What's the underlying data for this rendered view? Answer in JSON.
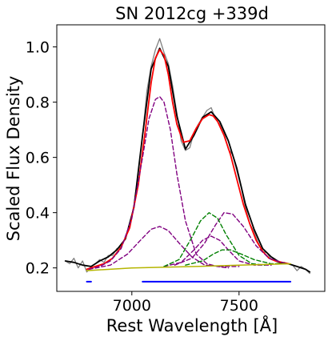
{
  "chart_data": {
    "type": "line",
    "title": "SN 2012cg  +339d",
    "xlabel": "Rest Wavelength [Å]",
    "ylabel": "Scaled Flux Density",
    "xlim": [
      6650,
      7900
    ],
    "ylim": [
      0.115,
      1.08
    ],
    "xticks": [
      7000,
      7500
    ],
    "xtick_labels": [
      "7000",
      "7500"
    ],
    "yticks": [
      0.2,
      0.4,
      0.6,
      0.8,
      1.0
    ],
    "ytick_labels": [
      "0.2",
      "0.4",
      "0.6",
      "0.8",
      "1.0"
    ],
    "grid": false,
    "legend": "none",
    "colors": {
      "observed": "#808080",
      "smoothed": "#000000",
      "total_fit": "#ff0000",
      "purple_components": "#800080",
      "green_components": "#008000",
      "continuum": "#b5b500",
      "wavelength_ranges": "#0000ff"
    },
    "series": [
      {
        "style": "solid-gray",
        "x": [
          6690,
          6710,
          6730,
          6750,
          6770,
          6790,
          6810,
          6830,
          6850,
          6870,
          6890,
          6910,
          6930,
          6950,
          6970,
          6990,
          7010,
          7030,
          7050,
          7070,
          7090,
          7110,
          7130,
          7150,
          7170,
          7190,
          7210,
          7230,
          7250,
          7270,
          7290,
          7310,
          7330,
          7350,
          7370,
          7390,
          7410,
          7430,
          7450,
          7470,
          7490,
          7510,
          7530,
          7550,
          7570,
          7590,
          7610,
          7630,
          7650,
          7670,
          7690,
          7710,
          7730,
          7750,
          7770,
          7790,
          7810,
          7830
        ],
        "y": [
          0.225,
          0.215,
          0.235,
          0.2,
          0.225,
          0.185,
          0.205,
          0.215,
          0.23,
          0.22,
          0.245,
          0.245,
          0.27,
          0.275,
          0.31,
          0.35,
          0.43,
          0.54,
          0.68,
          0.84,
          0.93,
          0.99,
          1.03,
          0.98,
          0.94,
          0.86,
          0.76,
          0.66,
          0.625,
          0.635,
          0.69,
          0.72,
          0.745,
          0.77,
          0.78,
          0.74,
          0.72,
          0.69,
          0.63,
          0.61,
          0.55,
          0.49,
          0.42,
          0.36,
          0.33,
          0.29,
          0.26,
          0.255,
          0.23,
          0.225,
          0.215,
          0.22,
          0.215,
          0.21,
          0.19,
          0.205,
          0.195,
          0.18
        ]
      },
      {
        "style": "solid-black",
        "x": [
          6690,
          6730,
          6770,
          6810,
          6850,
          6890,
          6930,
          6970,
          7010,
          7050,
          7090,
          7130,
          7170,
          7210,
          7250,
          7290,
          7330,
          7370,
          7410,
          7450,
          7490,
          7530,
          7570,
          7610,
          7650,
          7690,
          7730,
          7770,
          7810,
          7830
        ],
        "y": [
          0.225,
          0.22,
          0.21,
          0.205,
          0.225,
          0.24,
          0.265,
          0.305,
          0.42,
          0.68,
          0.92,
          0.995,
          0.93,
          0.75,
          0.63,
          0.68,
          0.745,
          0.765,
          0.73,
          0.66,
          0.56,
          0.43,
          0.34,
          0.27,
          0.24,
          0.22,
          0.215,
          0.205,
          0.195,
          0.185
        ]
      },
      {
        "style": "solid-red",
        "x": [
          6790,
          6830,
          6870,
          6910,
          6950,
          6990,
          7030,
          7060,
          7090,
          7110,
          7130,
          7150,
          7170,
          7190,
          7210,
          7240,
          7270,
          7300,
          7330,
          7360,
          7380,
          7400,
          7430,
          7460,
          7490,
          7520,
          7550,
          7580,
          7610,
          7640,
          7670,
          7700,
          7730
        ],
        "y": [
          0.195,
          0.205,
          0.215,
          0.235,
          0.275,
          0.345,
          0.5,
          0.68,
          0.87,
          0.96,
          0.99,
          0.97,
          0.9,
          0.8,
          0.72,
          0.655,
          0.66,
          0.705,
          0.74,
          0.755,
          0.75,
          0.73,
          0.68,
          0.61,
          0.52,
          0.43,
          0.36,
          0.3,
          0.26,
          0.235,
          0.225,
          0.22,
          0.215
        ]
      },
      {
        "style": "dashed-purple",
        "x": [
          6800,
          6850,
          6900,
          6950,
          7000,
          7050,
          7080,
          7110,
          7130,
          7150,
          7180,
          7210,
          7250,
          7300,
          7350,
          7400,
          7450
        ],
        "y": [
          0.195,
          0.205,
          0.225,
          0.27,
          0.38,
          0.6,
          0.74,
          0.81,
          0.82,
          0.8,
          0.7,
          0.54,
          0.37,
          0.25,
          0.215,
          0.205,
          0.2
        ]
      },
      {
        "style": "dashed-purple",
        "x": [
          6800,
          6900,
          6980,
          7040,
          7090,
          7130,
          7170,
          7220,
          7280,
          7340,
          7420,
          7500
        ],
        "y": [
          0.195,
          0.21,
          0.25,
          0.3,
          0.34,
          0.35,
          0.335,
          0.29,
          0.24,
          0.21,
          0.205,
          0.205
        ]
      },
      {
        "style": "dashed-purple",
        "x": [
          7150,
          7230,
          7290,
          7330,
          7370,
          7410,
          7450,
          7500,
          7570,
          7650
        ],
        "y": [
          0.205,
          0.22,
          0.265,
          0.3,
          0.315,
          0.3,
          0.265,
          0.225,
          0.21,
          0.21
        ]
      },
      {
        "style": "dashed-purple",
        "x": [
          7200,
          7280,
          7340,
          7390,
          7430,
          7470,
          7520,
          7580,
          7640,
          7720
        ],
        "y": [
          0.21,
          0.235,
          0.29,
          0.355,
          0.4,
          0.395,
          0.35,
          0.28,
          0.235,
          0.215
        ]
      },
      {
        "style": "dashed-green",
        "x": [
          7150,
          7220,
          7280,
          7320,
          7360,
          7400,
          7440,
          7500,
          7560,
          7620
        ],
        "y": [
          0.205,
          0.23,
          0.31,
          0.37,
          0.4,
          0.38,
          0.32,
          0.245,
          0.215,
          0.21
        ]
      },
      {
        "style": "dashed-green",
        "x": [
          7250,
          7330,
          7380,
          7420,
          7460,
          7510,
          7570,
          7650,
          7720
        ],
        "y": [
          0.21,
          0.225,
          0.25,
          0.265,
          0.265,
          0.25,
          0.23,
          0.215,
          0.215
        ]
      },
      {
        "style": "solid-olive",
        "x": [
          6790,
          7000,
          7300,
          7500,
          7740
        ],
        "y": [
          0.19,
          0.2,
          0.205,
          0.21,
          0.215
        ]
      },
      {
        "style": "solid-blue",
        "x": [
          6790,
          6810
        ],
        "y": [
          0.15,
          0.15
        ]
      },
      {
        "style": "solid-blue",
        "x": [
          7050,
          7740
        ],
        "y": [
          0.15,
          0.15
        ]
      }
    ]
  }
}
